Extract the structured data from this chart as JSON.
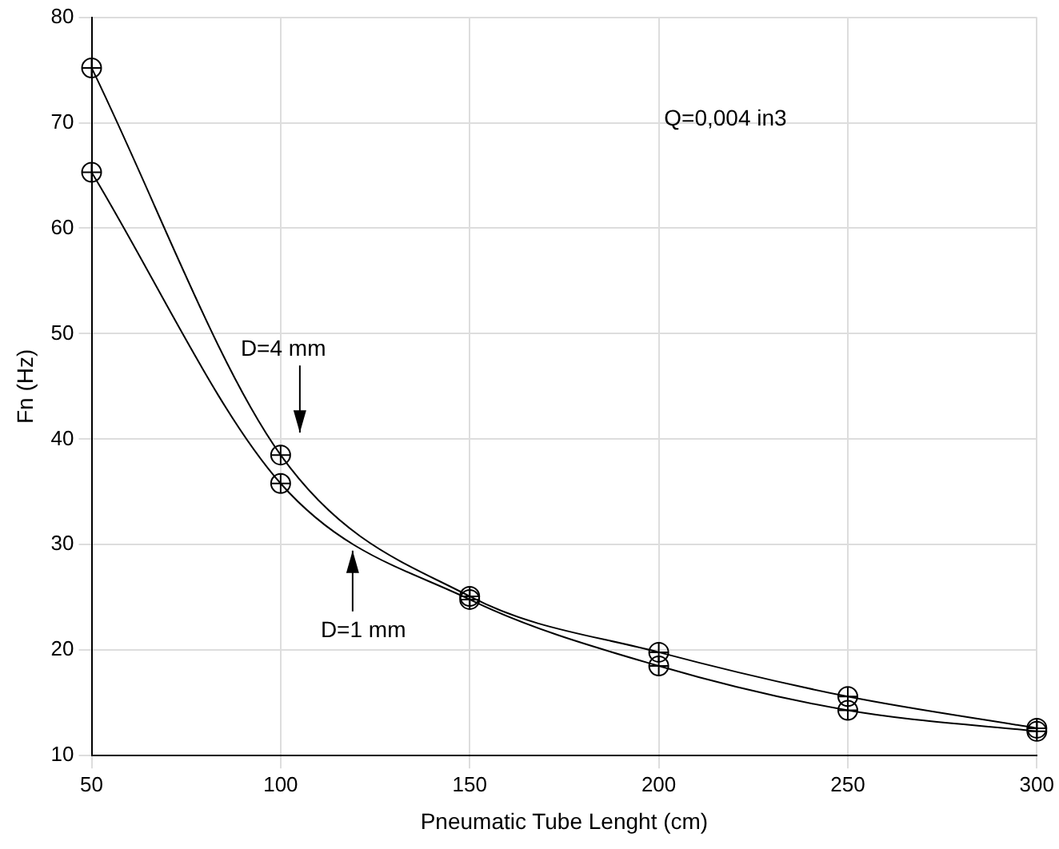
{
  "chart_data": {
    "type": "line",
    "xlabel": "Pneumatic Tube Lenght (cm)",
    "ylabel": "Fn (Hz)",
    "x": [
      50,
      100,
      150,
      200,
      250,
      300
    ],
    "series": [
      {
        "name": "D=4 mm",
        "color": "#000000",
        "values": [
          75.2,
          38.5,
          25.1,
          19.8,
          15.6,
          12.6
        ]
      },
      {
        "name": "D=1 mm",
        "color": "#000000",
        "values": [
          65.3,
          35.8,
          24.8,
          18.5,
          14.3,
          12.3
        ]
      }
    ],
    "xlim": [
      50,
      300
    ],
    "xticks": [
      50,
      100,
      150,
      200,
      250,
      300
    ],
    "ylim": [
      10,
      80
    ],
    "yticks": [
      10,
      20,
      30,
      40,
      50,
      60,
      70,
      80
    ],
    "grid": true,
    "legend": false,
    "marker": "circle",
    "line_style": "solid",
    "annotations": [
      "Q=0,004 in3"
    ]
  }
}
